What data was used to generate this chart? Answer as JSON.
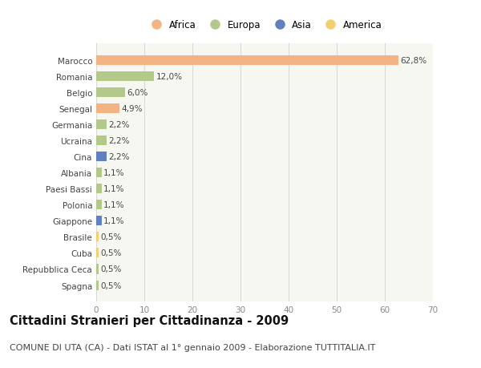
{
  "categories": [
    "Marocco",
    "Romania",
    "Belgio",
    "Senegal",
    "Germania",
    "Ucraina",
    "Cina",
    "Albania",
    "Paesi Bassi",
    "Polonia",
    "Giappone",
    "Brasile",
    "Cuba",
    "Repubblica Ceca",
    "Spagna"
  ],
  "values": [
    62.8,
    12.0,
    6.0,
    4.9,
    2.2,
    2.2,
    2.2,
    1.1,
    1.1,
    1.1,
    1.1,
    0.5,
    0.5,
    0.5,
    0.5
  ],
  "labels": [
    "62,8%",
    "12,0%",
    "6,0%",
    "4,9%",
    "2,2%",
    "2,2%",
    "2,2%",
    "1,1%",
    "1,1%",
    "1,1%",
    "1,1%",
    "0,5%",
    "0,5%",
    "0,5%",
    "0,5%"
  ],
  "continent": [
    "Africa",
    "Europa",
    "Europa",
    "Africa",
    "Europa",
    "Europa",
    "Asia",
    "Europa",
    "Europa",
    "Europa",
    "Asia",
    "America",
    "America",
    "Europa",
    "Europa"
  ],
  "colors": {
    "Africa": "#F2B482",
    "Europa": "#B3C98A",
    "Asia": "#6080C0",
    "America": "#F0D070"
  },
  "legend_order": [
    "Africa",
    "Europa",
    "Asia",
    "America"
  ],
  "xlim": [
    0,
    70
  ],
  "xticks": [
    0,
    10,
    20,
    30,
    40,
    50,
    60,
    70
  ],
  "title": "Cittadini Stranieri per Cittadinanza - 2009",
  "subtitle": "COMUNE DI UTA (CA) - Dati ISTAT al 1° gennaio 2009 - Elaborazione TUTTITALIA.IT",
  "figure_bg": "#ffffff",
  "axes_bg": "#f7f7f2",
  "bar_height": 0.6,
  "title_fontsize": 10.5,
  "subtitle_fontsize": 8,
  "label_fontsize": 7.5,
  "tick_fontsize": 7.5,
  "legend_fontsize": 8.5
}
